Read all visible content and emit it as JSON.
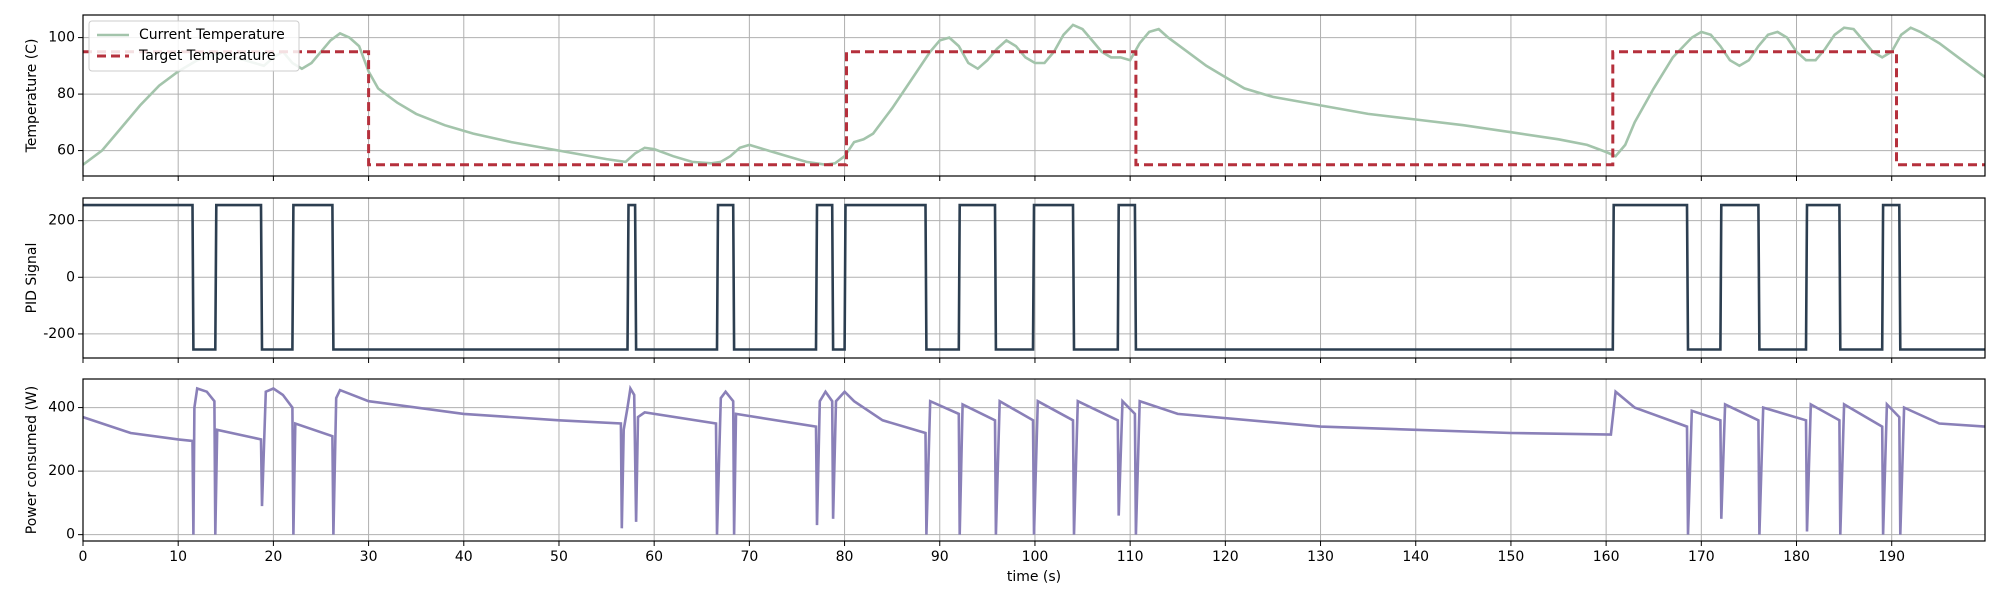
{
  "chart_data": [
    {
      "type": "line",
      "ylabel": "Temperature (C)",
      "xlim": [
        0,
        199.8
      ],
      "xticks": [
        0,
        10,
        20,
        30,
        40,
        50,
        60,
        70,
        80,
        90,
        100,
        110,
        120,
        130,
        140,
        150,
        160,
        170,
        180,
        190
      ],
      "ylim": [
        51,
        108
      ],
      "yticks": [
        60,
        80,
        100
      ],
      "grid": true,
      "legend": "upper left",
      "series": [
        {
          "name": "Current Temperature",
          "color": "#a3c4ab",
          "style": "solid",
          "x": [
            0,
            2,
            4,
            6,
            8,
            10,
            12,
            14,
            16,
            18,
            19,
            20,
            21,
            22,
            23,
            24,
            25,
            26,
            27,
            28,
            29,
            30,
            31,
            33,
            35,
            38,
            41,
            45,
            50,
            55,
            57,
            58,
            59,
            60,
            62,
            64,
            66,
            67,
            68,
            69,
            70,
            72,
            74,
            76,
            78,
            79,
            80,
            81,
            82,
            83,
            85,
            87,
            89,
            90,
            91,
            92,
            93,
            94,
            95,
            96,
            97,
            98,
            99,
            100,
            101,
            102,
            103,
            104,
            105,
            106,
            107,
            108,
            109,
            110,
            111,
            112,
            113,
            114,
            116,
            118,
            120,
            122,
            125,
            130,
            135,
            140,
            145,
            150,
            155,
            158,
            160,
            161,
            162,
            163,
            165,
            167,
            169,
            170,
            171,
            172,
            173,
            174,
            175,
            176,
            177,
            178,
            179,
            180,
            181,
            182,
            183,
            184,
            185,
            186,
            187,
            188,
            189,
            190,
            191,
            192,
            193,
            195,
            197,
            199.8
          ],
          "values": [
            55,
            60,
            68,
            76,
            83,
            88,
            92,
            94,
            93,
            91,
            90,
            93,
            95,
            91,
            89,
            91,
            95,
            99,
            101.5,
            100,
            97,
            88,
            82,
            77,
            73,
            69,
            66,
            63,
            60,
            57,
            56,
            59,
            61,
            60.5,
            58,
            56,
            55.5,
            56,
            58,
            61,
            62,
            60,
            58,
            56,
            55,
            55.5,
            58,
            63,
            64,
            66,
            75,
            85,
            95,
            99,
            100,
            97,
            91,
            89,
            92,
            96,
            99,
            97,
            93,
            91,
            91,
            95,
            101,
            104.5,
            103,
            99,
            95,
            93,
            93,
            92,
            98,
            102,
            103,
            100,
            95,
            90,
            86,
            82,
            79,
            76,
            73,
            71,
            69,
            66.5,
            64,
            62,
            59.5,
            58,
            62,
            70,
            82,
            93,
            100,
            102,
            101,
            97,
            92,
            90,
            92,
            97,
            101,
            102,
            100,
            95,
            92,
            92,
            96,
            101,
            103.5,
            103,
            99,
            95,
            93,
            95,
            101,
            103.5,
            102,
            98,
            93,
            86
          ]
        },
        {
          "name": "Target Temperature",
          "color": "#b5303c",
          "style": "dashed",
          "x": [
            0,
            30,
            30,
            80.2,
            80.2,
            110.6,
            110.6,
            160.7,
            160.7,
            190.5,
            190.5,
            199.8
          ],
          "values": [
            95,
            95,
            55,
            55,
            95,
            95,
            55,
            55,
            95,
            95,
            55,
            55
          ]
        }
      ]
    },
    {
      "type": "line",
      "ylabel": "PID Signal",
      "xlim": [
        0,
        199.8
      ],
      "xticks": [
        0,
        10,
        20,
        30,
        40,
        50,
        60,
        70,
        80,
        90,
        100,
        110,
        120,
        130,
        140,
        150,
        160,
        170,
        180,
        190
      ],
      "ylim": [
        -285,
        280
      ],
      "yticks": [
        -200,
        0,
        200
      ],
      "grid": true,
      "series": [
        {
          "name": "PID Signal",
          "color": "#2c3e50",
          "style": "solid",
          "x": [
            0,
            11.5,
            11.6,
            13.9,
            14.0,
            18.7,
            18.8,
            22.0,
            22.1,
            26.2,
            26.3,
            57.2,
            57.3,
            58.0,
            58.1,
            66.6,
            66.7,
            68.3,
            68.4,
            77.0,
            77.1,
            78.7,
            78.8,
            80.0,
            80.1,
            88.5,
            88.6,
            92.0,
            92.1,
            95.8,
            95.9,
            99.8,
            99.9,
            104.0,
            104.1,
            108.7,
            108.8,
            110.5,
            110.6,
            160.7,
            160.8,
            168.5,
            168.6,
            172.0,
            172.1,
            176.0,
            176.1,
            181.0,
            181.1,
            184.5,
            184.6,
            189.0,
            189.1,
            190.8,
            190.9,
            199.8
          ],
          "values": [
            255,
            255,
            -255,
            -255,
            255,
            255,
            -255,
            -255,
            255,
            255,
            -255,
            -255,
            255,
            255,
            -255,
            -255,
            255,
            255,
            -255,
            -255,
            255,
            255,
            -255,
            -255,
            255,
            255,
            -255,
            -255,
            255,
            255,
            -255,
            -255,
            255,
            255,
            -255,
            -255,
            255,
            255,
            -255,
            -255,
            255,
            255,
            -255,
            -255,
            255,
            255,
            -255,
            -255,
            255,
            255,
            -255,
            -255,
            255,
            255,
            -255,
            -255
          ]
        }
      ]
    },
    {
      "type": "line",
      "ylabel": "Power consumed (W)",
      "xlabel": "time (s)",
      "xlim": [
        0,
        199.8
      ],
      "xticks": [
        0,
        10,
        20,
        30,
        40,
        50,
        60,
        70,
        80,
        90,
        100,
        110,
        120,
        130,
        140,
        150,
        160,
        170,
        180,
        190
      ],
      "ylim": [
        -20,
        490
      ],
      "yticks": [
        0,
        200,
        400
      ],
      "grid": true,
      "series": [
        {
          "name": "Power consumed",
          "color": "#8a80b8",
          "style": "solid",
          "x": [
            0,
            5,
            10,
            11.5,
            11.6,
            11.7,
            12,
            13,
            13.8,
            13.9,
            14.1,
            18.7,
            18.8,
            19.2,
            20,
            21,
            22,
            22.1,
            22.3,
            26.2,
            26.3,
            26.6,
            27,
            30,
            40,
            50,
            56.5,
            56.6,
            56.8,
            57.2,
            57.5,
            57.9,
            58.1,
            58.3,
            59,
            66.5,
            66.6,
            67,
            67.5,
            68.3,
            68.4,
            68.6,
            77,
            77.1,
            77.4,
            78,
            78.7,
            78.8,
            79.1,
            80,
            81,
            84,
            88.5,
            88.6,
            89,
            92,
            92.1,
            92.4,
            95.8,
            95.9,
            96.3,
            99.8,
            99.9,
            100.3,
            104,
            104.1,
            104.5,
            108.7,
            108.8,
            109.2,
            110.5,
            110.6,
            111,
            115,
            130,
            150,
            160.5,
            161,
            163,
            168.5,
            168.6,
            169,
            172,
            172.1,
            172.5,
            176,
            176.1,
            176.5,
            181,
            181.1,
            181.5,
            184.5,
            184.6,
            185,
            189,
            189.1,
            189.5,
            190.8,
            190.9,
            191.3,
            195,
            199.8
          ],
          "values": [
            370,
            320,
            300,
            295,
            0,
            400,
            460,
            450,
            420,
            0,
            330,
            300,
            90,
            450,
            460,
            440,
            400,
            0,
            350,
            310,
            0,
            430,
            455,
            420,
            380,
            360,
            350,
            20,
            330,
            400,
            460,
            440,
            40,
            370,
            385,
            350,
            0,
            430,
            450,
            420,
            0,
            380,
            340,
            30,
            420,
            450,
            420,
            50,
            420,
            450,
            420,
            360,
            320,
            0,
            420,
            380,
            0,
            410,
            360,
            0,
            420,
            360,
            0,
            420,
            360,
            0,
            420,
            360,
            60,
            420,
            380,
            0,
            420,
            380,
            340,
            320,
            315,
            450,
            400,
            340,
            0,
            390,
            360,
            50,
            410,
            360,
            0,
            400,
            360,
            10,
            410,
            360,
            0,
            410,
            340,
            0,
            410,
            370,
            0,
            400,
            350,
            340
          ]
        }
      ]
    }
  ]
}
